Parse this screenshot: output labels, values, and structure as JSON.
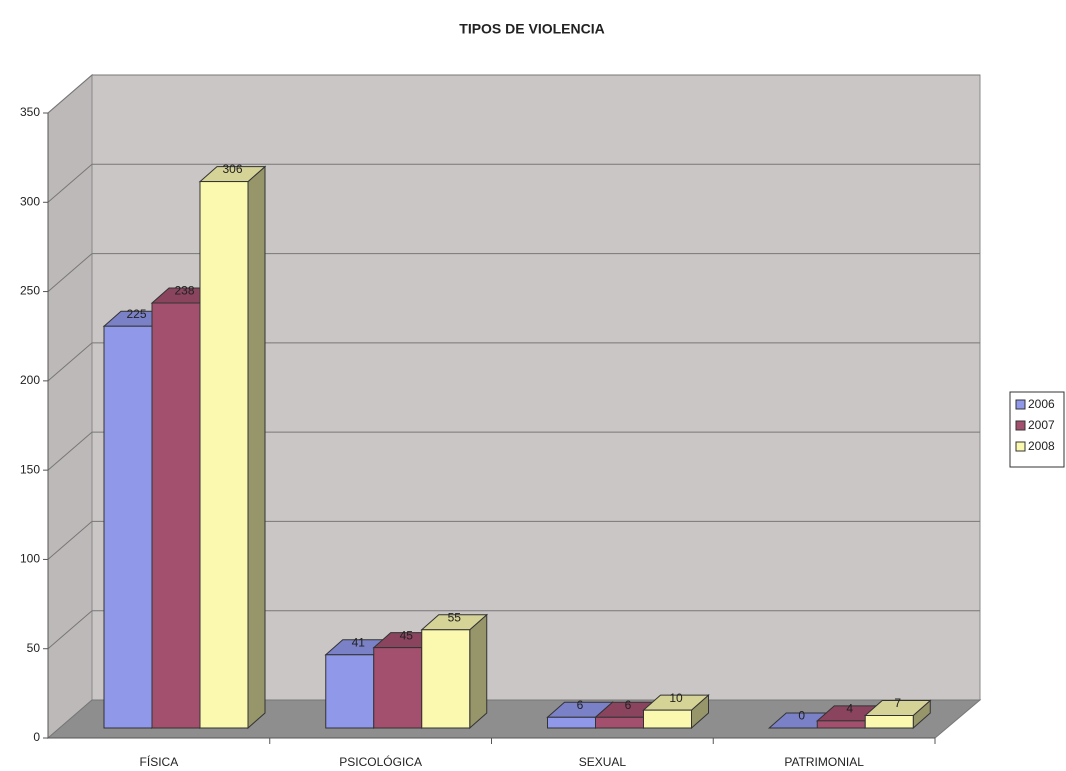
{
  "chart_data": {
    "type": "bar3d",
    "title": "TIPOS DE VIOLENCIA",
    "categories": [
      "FÍSICA",
      "PSICOLÓGICA",
      "SEXUAL",
      "PATRIMONIAL"
    ],
    "series": [
      {
        "name": "2006",
        "color": "#9098ea",
        "values": [
          225,
          41,
          6,
          0
        ]
      },
      {
        "name": "2007",
        "color": "#a2506e",
        "values": [
          238,
          45,
          6,
          4
        ]
      },
      {
        "name": "2008",
        "color": "#fbf8b0",
        "values": [
          306,
          55,
          10,
          7
        ]
      }
    ],
    "ylim": [
      0,
      350
    ],
    "yticks": [
      0,
      50,
      100,
      150,
      200,
      250,
      300,
      350
    ],
    "grid": true,
    "legend": "right"
  }
}
